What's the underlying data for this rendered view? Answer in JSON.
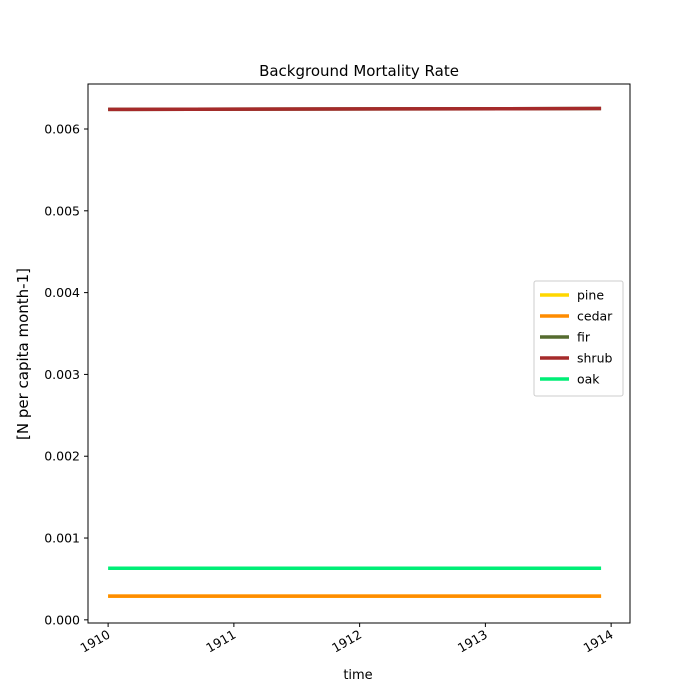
{
  "chart_data": {
    "type": "line",
    "title": "Background Mortality Rate",
    "xlabel": "time",
    "ylabel": "[N per capita month-1]",
    "xlim": [
      1909.84,
      1914.15
    ],
    "ylim": [
      -3.86e-05,
      0.00655
    ],
    "x_ticks": [
      1910,
      1911,
      1912,
      1913,
      1914
    ],
    "x_tick_labels": [
      "1910",
      "1911",
      "1912",
      "1913",
      "1914"
    ],
    "y_ticks": [
      0.0,
      0.001,
      0.002,
      0.003,
      0.004,
      0.005,
      0.006
    ],
    "y_tick_labels": [
      "0.000",
      "0.001",
      "0.002",
      "0.003",
      "0.004",
      "0.005",
      "0.006"
    ],
    "grid": false,
    "legend_position": "center-right",
    "x": [
      1910.0,
      1913.92
    ],
    "series": [
      {
        "name": "pine",
        "color": "#ffd700",
        "values": [
          0.00029,
          0.00029
        ]
      },
      {
        "name": "cedar",
        "color": "#ff8c00",
        "values": [
          0.00029,
          0.00029
        ]
      },
      {
        "name": "fir",
        "color": "#556b2f",
        "values": [
          0.00624,
          0.00625
        ]
      },
      {
        "name": "shrub",
        "color": "#a52a2a",
        "values": [
          0.00624,
          0.00625
        ]
      },
      {
        "name": "oak",
        "color": "#00ee76",
        "values": [
          0.00063,
          0.00063
        ]
      }
    ]
  }
}
